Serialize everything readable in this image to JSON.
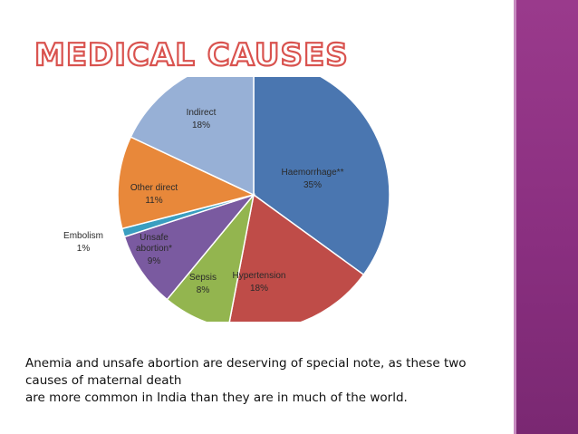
{
  "title": "MEDICAL CAUSES",
  "chart_data": {
    "type": "pie",
    "slices": [
      {
        "label": "Haemorrhage**",
        "value": 35,
        "display": "35%",
        "color": "#4a76b0"
      },
      {
        "label": "Hypertension",
        "value": 18,
        "display": "18%",
        "color": "#bf4c48"
      },
      {
        "label": "Sepsis",
        "value": 8,
        "display": "8%",
        "color": "#93b54f"
      },
      {
        "label": "Unsafe abortion*",
        "value": 9,
        "display": "9%",
        "color": "#7a5aa0"
      },
      {
        "label": "Embolism",
        "value": 1,
        "display": "1%",
        "color": "#3a9ec0"
      },
      {
        "label": "Other direct",
        "value": 11,
        "display": "11%",
        "color": "#e8883a"
      },
      {
        "label": "Indirect",
        "value": 18,
        "display": "18%",
        "color": "#97b0d6"
      }
    ]
  },
  "caption": {
    "line1": "Anemia and unsafe abortion are deserving of special note, as these two",
    "line2": "causes of maternal death",
    "line3": "are more common in India than they are in much of the world."
  },
  "colors": {
    "side_band": "#8a2f80",
    "title_outline": "#d9534f"
  }
}
